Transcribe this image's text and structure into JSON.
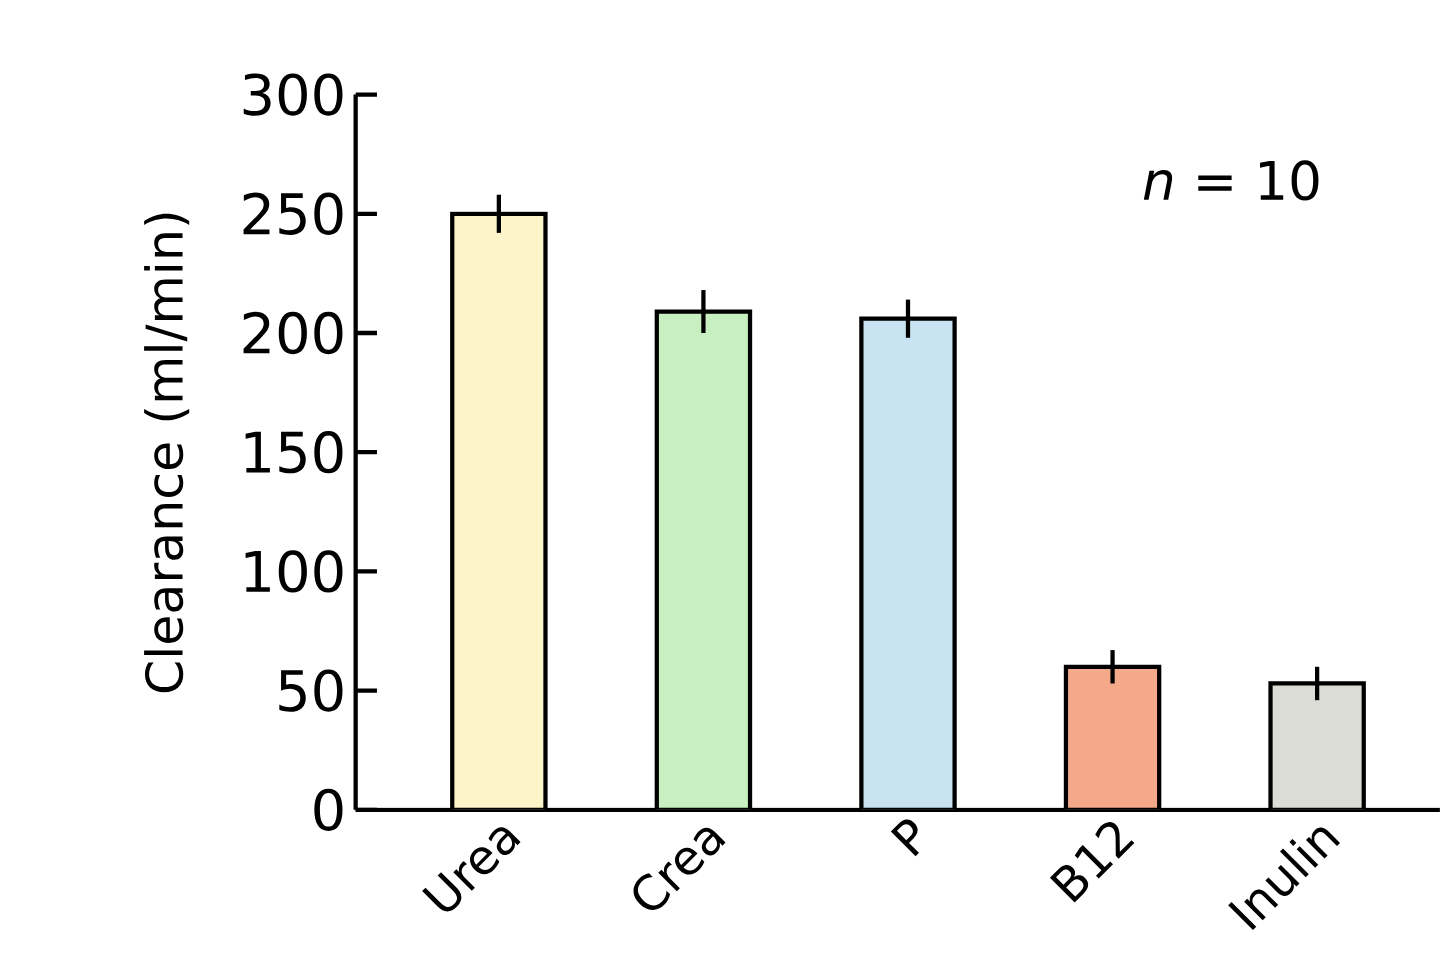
{
  "chart_data": {
    "type": "bar",
    "ylabel": "Clearance (ml/min)",
    "categories": [
      "Urea",
      "Crea",
      "P",
      "B12",
      "Inulin"
    ],
    "values": [
      250,
      209,
      206,
      60,
      53
    ],
    "errors": [
      8,
      9,
      8,
      7,
      7
    ],
    "colors": [
      "#fdf5c9",
      "#c8efc0",
      "#c9e3f2",
      "#f4a98a",
      "#dcdcd6"
    ],
    "ylim": [
      0,
      300
    ],
    "yticks": [
      0,
      50,
      100,
      150,
      200,
      250,
      300
    ],
    "annotations": [
      "*n* = 10"
    ]
  }
}
